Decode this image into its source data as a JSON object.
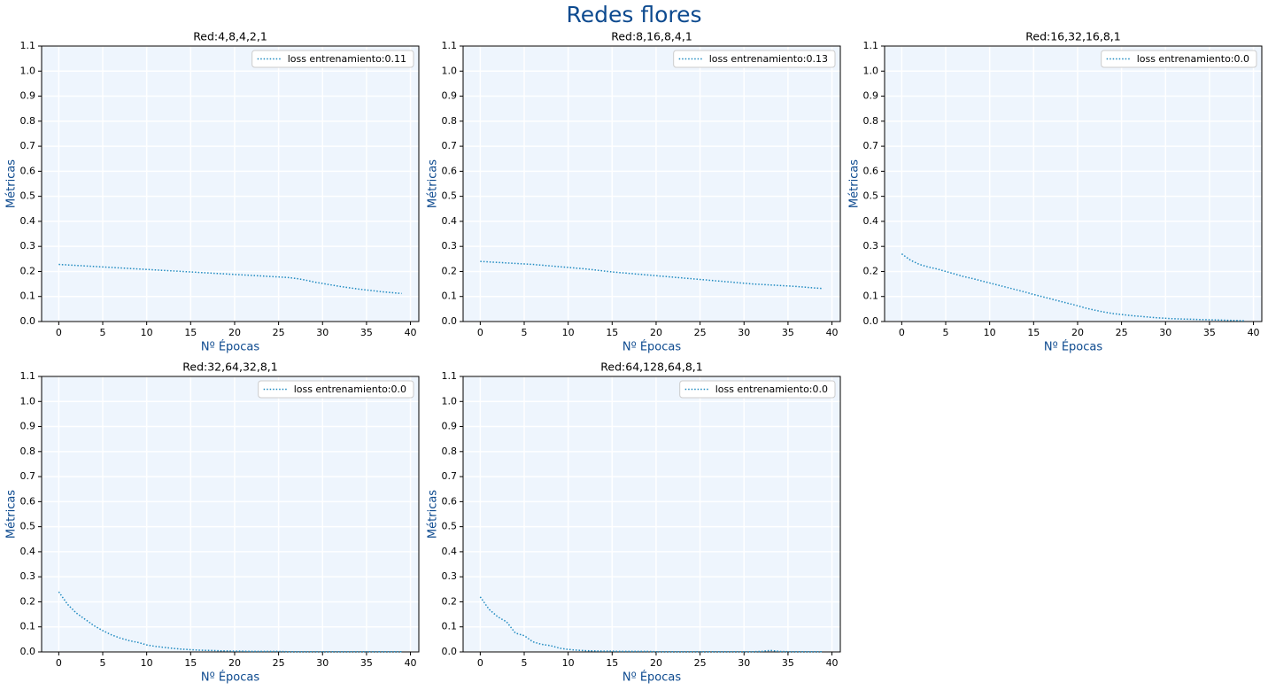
{
  "title": "Redes flores",
  "chart_data": [
    {
      "type": "line",
      "title": "Red:4,8,4,2,1",
      "xlabel": "Nº Épocas",
      "ylabel": "Métricas",
      "x": [
        0,
        1,
        2,
        3,
        4,
        5,
        6,
        7,
        8,
        9,
        10,
        11,
        12,
        13,
        14,
        15,
        16,
        17,
        18,
        19,
        20,
        21,
        22,
        23,
        24,
        25,
        26,
        27,
        28,
        29,
        30,
        31,
        32,
        33,
        34,
        35,
        36,
        37,
        38,
        39
      ],
      "series": [
        {
          "name": "loss entrenamiento:0.11",
          "color": "#1f8ac0",
          "values": [
            0.228,
            0.226,
            0.224,
            0.222,
            0.22,
            0.218,
            0.216,
            0.214,
            0.212,
            0.21,
            0.208,
            0.206,
            0.204,
            0.202,
            0.2,
            0.198,
            0.196,
            0.194,
            0.192,
            0.19,
            0.188,
            0.186,
            0.184,
            0.182,
            0.18,
            0.178,
            0.176,
            0.172,
            0.166,
            0.158,
            0.152,
            0.146,
            0.14,
            0.135,
            0.13,
            0.126,
            0.122,
            0.118,
            0.115,
            0.112
          ]
        }
      ],
      "xlim": [
        -1.95,
        40.95
      ],
      "xticks": [
        0,
        5,
        10,
        15,
        20,
        25,
        30,
        35,
        40
      ],
      "ylim": [
        0,
        1.1
      ],
      "yticks": [
        {
          "value": 0,
          "label": "0.0"
        },
        0.1,
        0.2,
        0.3,
        0.4,
        0.5,
        0.6,
        0.7,
        0.8,
        0.9,
        {
          "value": 1,
          "label": "1.0"
        },
        1.1
      ],
      "grid": true,
      "legend": "upper-right"
    },
    {
      "type": "line",
      "title": "Red:8,16,8,4,1",
      "xlabel": "Nº Épocas",
      "ylabel": "Métricas",
      "x": [
        0,
        1,
        2,
        3,
        4,
        5,
        6,
        7,
        8,
        9,
        10,
        11,
        12,
        13,
        14,
        15,
        16,
        17,
        18,
        19,
        20,
        21,
        22,
        23,
        24,
        25,
        26,
        27,
        28,
        29,
        30,
        31,
        32,
        33,
        34,
        35,
        36,
        37,
        38,
        39
      ],
      "series": [
        {
          "name": "loss entrenamiento:0.13",
          "color": "#1f8ac0",
          "values": [
            0.24,
            0.238,
            0.236,
            0.234,
            0.232,
            0.23,
            0.228,
            0.225,
            0.222,
            0.219,
            0.216,
            0.213,
            0.21,
            0.206,
            0.202,
            0.198,
            0.195,
            0.192,
            0.189,
            0.186,
            0.183,
            0.18,
            0.177,
            0.174,
            0.171,
            0.168,
            0.165,
            0.162,
            0.159,
            0.156,
            0.153,
            0.15,
            0.148,
            0.146,
            0.144,
            0.142,
            0.14,
            0.137,
            0.134,
            0.132
          ]
        }
      ],
      "xlim": [
        -1.95,
        40.95
      ],
      "xticks": [
        0,
        5,
        10,
        15,
        20,
        25,
        30,
        35,
        40
      ],
      "ylim": [
        0,
        1.1
      ],
      "yticks": [
        {
          "value": 0,
          "label": "0.0"
        },
        0.1,
        0.2,
        0.3,
        0.4,
        0.5,
        0.6,
        0.7,
        0.8,
        0.9,
        {
          "value": 1,
          "label": "1.0"
        },
        1.1
      ],
      "grid": true,
      "legend": "upper-right"
    },
    {
      "type": "line",
      "title": "Red:16,32,16,8,1",
      "xlabel": "Nº Épocas",
      "ylabel": "Métricas",
      "x": [
        0,
        1,
        2,
        3,
        4,
        5,
        6,
        7,
        8,
        9,
        10,
        11,
        12,
        13,
        14,
        15,
        16,
        17,
        18,
        19,
        20,
        21,
        22,
        23,
        24,
        25,
        26,
        27,
        28,
        29,
        30,
        31,
        32,
        33,
        34,
        35,
        36,
        37,
        38,
        39
      ],
      "series": [
        {
          "name": "loss entrenamiento:0.0",
          "color": "#1f8ac0",
          "values": [
            0.27,
            0.245,
            0.228,
            0.218,
            0.21,
            0.2,
            0.19,
            0.18,
            0.172,
            0.163,
            0.154,
            0.145,
            0.136,
            0.127,
            0.118,
            0.108,
            0.099,
            0.09,
            0.081,
            0.072,
            0.063,
            0.053,
            0.045,
            0.038,
            0.032,
            0.028,
            0.024,
            0.021,
            0.018,
            0.015,
            0.013,
            0.011,
            0.01,
            0.009,
            0.008,
            0.007,
            0.006,
            0.005,
            0.004,
            0.003
          ]
        }
      ],
      "xlim": [
        -1.95,
        40.95
      ],
      "xticks": [
        0,
        5,
        10,
        15,
        20,
        25,
        30,
        35,
        40
      ],
      "ylim": [
        0,
        1.1
      ],
      "yticks": [
        {
          "value": 0,
          "label": "0.0"
        },
        0.1,
        0.2,
        0.3,
        0.4,
        0.5,
        0.6,
        0.7,
        0.8,
        0.9,
        {
          "value": 1,
          "label": "1.0"
        },
        1.1
      ],
      "grid": true,
      "legend": "upper-right"
    },
    {
      "type": "line",
      "title": "Red:32,64,32,8,1",
      "xlabel": "Nº Épocas",
      "ylabel": "Métricas",
      "x": [
        0,
        1,
        2,
        3,
        4,
        5,
        6,
        7,
        8,
        9,
        10,
        11,
        12,
        13,
        14,
        15,
        16,
        17,
        18,
        19,
        20,
        21,
        22,
        23,
        24,
        25,
        26,
        27,
        28,
        29,
        30,
        31,
        32,
        33,
        34,
        35,
        36,
        37,
        38,
        39
      ],
      "series": [
        {
          "name": "loss entrenamiento:0.0",
          "color": "#1f8ac0",
          "values": [
            0.24,
            0.19,
            0.155,
            0.13,
            0.105,
            0.085,
            0.068,
            0.055,
            0.045,
            0.038,
            0.028,
            0.022,
            0.018,
            0.014,
            0.011,
            0.009,
            0.007,
            0.006,
            0.005,
            0.004,
            0.003,
            0.003,
            0.002,
            0.002,
            0.002,
            0.002,
            0.001,
            0.001,
            0.001,
            0.001,
            0.001,
            0.001,
            0.001,
            0.001,
            0.001,
            0.001,
            0.001,
            0.001,
            0.001,
            0.001
          ]
        }
      ],
      "xlim": [
        -1.95,
        40.95
      ],
      "xticks": [
        0,
        5,
        10,
        15,
        20,
        25,
        30,
        35,
        40
      ],
      "ylim": [
        0,
        1.1
      ],
      "yticks": [
        {
          "value": 0,
          "label": "0.0"
        },
        0.1,
        0.2,
        0.3,
        0.4,
        0.5,
        0.6,
        0.7,
        0.8,
        0.9,
        {
          "value": 1,
          "label": "1.0"
        },
        1.1
      ],
      "grid": true,
      "legend": "upper-right"
    },
    {
      "type": "line",
      "title": "Red:64,128,64,8,1",
      "xlabel": "Nº Épocas",
      "ylabel": "Métricas",
      "x": [
        0,
        1,
        2,
        3,
        4,
        5,
        6,
        7,
        8,
        9,
        10,
        11,
        12,
        13,
        14,
        15,
        16,
        17,
        18,
        19,
        20,
        21,
        22,
        23,
        24,
        25,
        26,
        27,
        28,
        29,
        30,
        31,
        32,
        33,
        34,
        35,
        36,
        37,
        38,
        39
      ],
      "series": [
        {
          "name": "loss entrenamiento:0.0",
          "color": "#1f8ac0",
          "values": [
            0.22,
            0.17,
            0.14,
            0.12,
            0.075,
            0.065,
            0.04,
            0.03,
            0.025,
            0.015,
            0.01,
            0.007,
            0.005,
            0.004,
            0.003,
            0.003,
            0.002,
            0.002,
            0.002,
            0.002,
            0.001,
            0.001,
            0.001,
            0.001,
            0.001,
            0.001,
            0.001,
            0.001,
            0.001,
            0.001,
            0.001,
            0.001,
            0.002,
            0.006,
            0.002,
            0.001,
            0.001,
            0.001,
            0.001,
            0.001
          ]
        }
      ],
      "xlim": [
        -1.95,
        40.95
      ],
      "xticks": [
        0,
        5,
        10,
        15,
        20,
        25,
        30,
        35,
        40
      ],
      "ylim": [
        0,
        1.1
      ],
      "yticks": [
        {
          "value": 0,
          "label": "0.0"
        },
        0.1,
        0.2,
        0.3,
        0.4,
        0.5,
        0.6,
        0.7,
        0.8,
        0.9,
        {
          "value": 1,
          "label": "1.0"
        },
        1.1
      ],
      "grid": true,
      "legend": "upper-right"
    }
  ]
}
